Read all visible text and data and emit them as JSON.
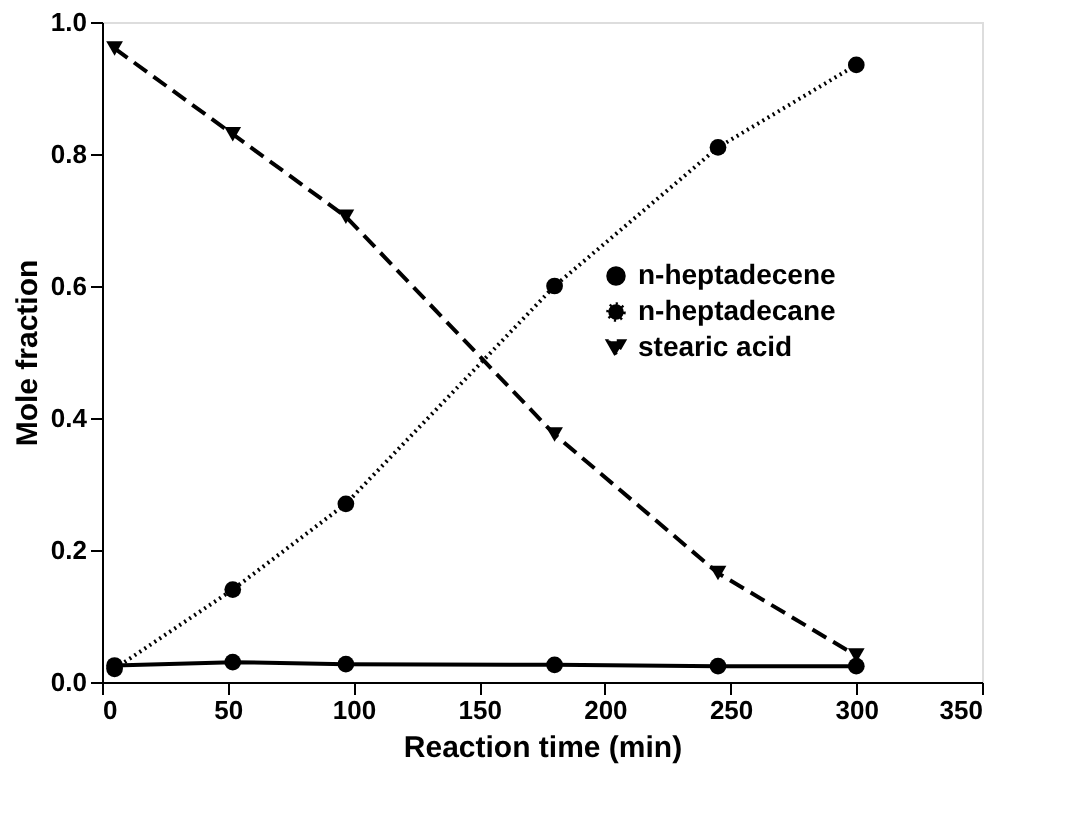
{
  "chart_data": {
    "type": "line",
    "xlabel": "Reaction time (min)",
    "ylabel": "Mole fraction",
    "x": [
      5,
      52,
      97,
      180,
      245,
      300
    ],
    "series": [
      {
        "name": "n-heptadecene",
        "color": "#000000",
        "marker": "circle",
        "line_style": "solid",
        "values": [
          0.025,
          0.03,
          0.027,
          0.026,
          0.024,
          0.024
        ]
      },
      {
        "name": "n-heptadecane",
        "color": "#000000",
        "marker": "circle",
        "line_style": "dotted",
        "values": [
          0.02,
          0.14,
          0.27,
          0.6,
          0.81,
          0.935
        ]
      },
      {
        "name": "stearic acid",
        "color": "#000000",
        "marker": "triangle",
        "line_style": "dashed",
        "values": [
          0.96,
          0.83,
          0.705,
          0.375,
          0.165,
          0.04
        ]
      }
    ],
    "xlim": [
      0,
      350
    ],
    "xticks": [
      0,
      50,
      100,
      150,
      200,
      250,
      300,
      350
    ],
    "ylim": [
      0,
      1.0
    ],
    "yticks": [
      {
        "value": 0,
        "label": "0.0"
      },
      {
        "value": 0.2,
        "label": "0.2"
      },
      {
        "value": 0.4,
        "label": "0.4"
      },
      {
        "value": 0.6,
        "label": "0.6"
      },
      {
        "value": 0.8,
        "label": "0.8"
      },
      {
        "value": 1.0,
        "label": "1.0"
      }
    ],
    "grid": false,
    "legend": "right"
  }
}
